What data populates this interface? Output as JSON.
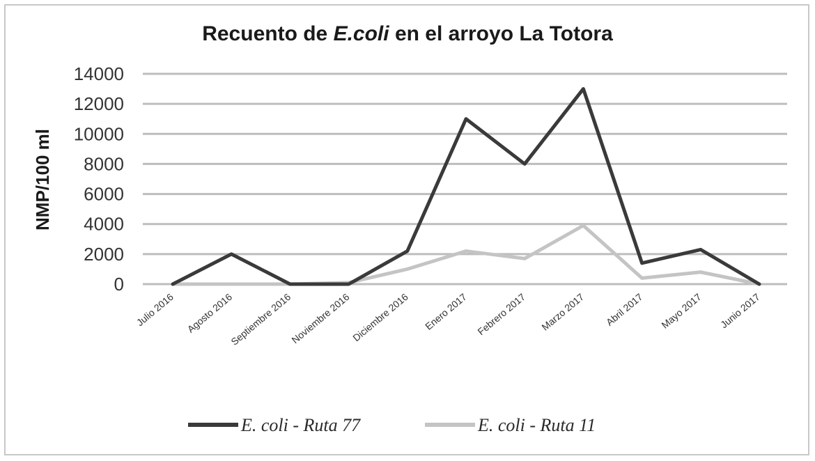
{
  "chart_data": {
    "type": "line",
    "title_prefix": "Recuento de ",
    "title_italic": "E.coli",
    "title_suffix": " en el arroyo La Totora",
    "xlabel": "",
    "ylabel": "NMP/100 ml",
    "ylim": [
      0,
      14000
    ],
    "yticks": [
      "0",
      "2000",
      "4000",
      "6000",
      "8000",
      "10000",
      "12000",
      "14000"
    ],
    "categories": [
      "Julio 2016",
      "Agosto 2016",
      "Septiembre 2016",
      "Noviembre 2016",
      "Diciembre 2016",
      "Enero 2017",
      "Febrero 2017",
      "Marzo 2017",
      "Abril 2017",
      "Mayo 2017",
      "Junio 2017"
    ],
    "series": [
      {
        "name": "E. coli  - Ruta 77",
        "color": "#3a3a3a",
        "values": [
          0,
          2000,
          0,
          0,
          2200,
          11000,
          8000,
          13000,
          1400,
          2300,
          0
        ]
      },
      {
        "name": "E. coli  - Ruta 11",
        "color": "#c4c4c4",
        "values": [
          0,
          0,
          0,
          100,
          1000,
          2200,
          1700,
          3900,
          400,
          800,
          0
        ]
      }
    ],
    "grid": true,
    "legend_position": "bottom"
  }
}
